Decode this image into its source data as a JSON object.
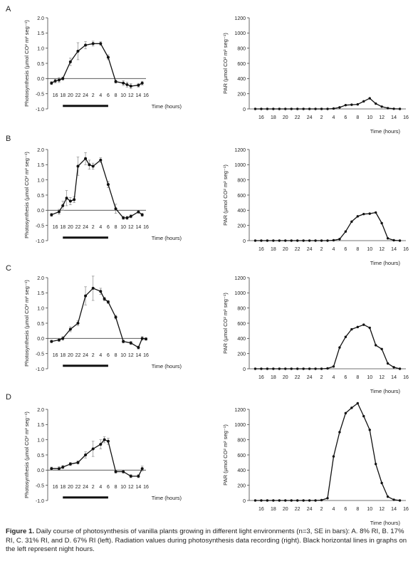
{
  "caption": {
    "label": "Figure 1.",
    "text": " Daily course of photosynthesis of vanilla plants growing in different light environments (n=3, SE in bars): A. 8% RI, B. 17% RI, C. 31% RI, and D. 67% RI (left). Radiation values during photosynthesis data recording (right). Black horizontal lines in graphs on the left represent night hours."
  },
  "colors": {
    "line": "#111111",
    "axis": "#444444",
    "error_bar": "#888888"
  },
  "chart_data": [
    {
      "panel": "A",
      "position": "left",
      "type": "line",
      "ylabel": "Photosynthesis (µmol CO² m² seg⁻¹)",
      "xlabel": "Time (hours)",
      "ylim": [
        -1.0,
        2.0
      ],
      "yticks": [
        "2.0",
        "1.5",
        "1.0",
        "0.5",
        "0.0",
        "-0.5",
        "-1.0"
      ],
      "xtick_labels": [
        "16",
        "18",
        "20",
        "22",
        "24",
        "2",
        "4",
        "6",
        "8",
        "10",
        "12",
        "14",
        "16"
      ],
      "night_bar": [
        18,
        30
      ],
      "x": [
        15,
        16,
        17,
        18,
        20,
        22,
        24,
        26,
        28,
        30,
        32,
        34,
        35,
        36,
        38,
        39
      ],
      "y": [
        -0.15,
        -0.08,
        -0.05,
        0.0,
        0.55,
        0.9,
        1.1,
        1.15,
        1.15,
        0.7,
        -0.1,
        -0.15,
        -0.2,
        -0.25,
        -0.22,
        -0.15
      ],
      "err": [
        0.05,
        0.06,
        0.08,
        0.05,
        0.12,
        0.28,
        0.12,
        0.08,
        0.06,
        0.08,
        0.05,
        0.08,
        0.08,
        0.08,
        0.06,
        0.06
      ]
    },
    {
      "panel": "A",
      "position": "right",
      "type": "line",
      "ylabel": "PAR (µmol CO² m² seg⁻¹)",
      "xlabel": "Time (hours)",
      "ylim": [
        0,
        1200
      ],
      "yticks": [
        "1200",
        "1000",
        "800",
        "600",
        "400",
        "200",
        "0"
      ],
      "xtick_labels": [
        "16",
        "18",
        "20",
        "22",
        "24",
        "2",
        "4",
        "6",
        "8",
        "10",
        "12",
        "14",
        "16"
      ],
      "x": [
        15,
        16,
        17,
        18,
        19,
        20,
        21,
        22,
        23,
        24,
        25,
        26,
        27,
        28,
        29,
        30,
        31,
        32,
        33,
        34,
        35,
        36,
        37,
        38,
        39
      ],
      "y": [
        0,
        0,
        0,
        0,
        0,
        0,
        0,
        0,
        0,
        0,
        0,
        0,
        0,
        5,
        20,
        50,
        55,
        60,
        100,
        140,
        70,
        30,
        10,
        2,
        0
      ]
    },
    {
      "panel": "B",
      "position": "left",
      "type": "line",
      "ylabel": "Photosynthesis (µmol CO² m² seg⁻¹)",
      "xlabel": "Time (hours)",
      "ylim": [
        -1.0,
        2.0
      ],
      "yticks": [
        "2.0",
        "1.5",
        "1.0",
        "0.5",
        "0.0",
        "-0.5",
        "-1.0"
      ],
      "xtick_labels": [
        "16",
        "18",
        "20",
        "22",
        "24",
        "2",
        "4",
        "6",
        "8",
        "10",
        "12",
        "14",
        "16"
      ],
      "night_bar": [
        18,
        30
      ],
      "x": [
        15,
        17,
        18,
        19,
        20,
        21,
        22,
        24,
        25,
        26,
        28,
        30,
        32,
        34,
        35,
        36,
        38,
        39
      ],
      "y": [
        -0.15,
        -0.05,
        0.15,
        0.4,
        0.3,
        0.35,
        1.45,
        1.7,
        1.5,
        1.45,
        1.65,
        0.85,
        0.05,
        -0.25,
        -0.25,
        -0.2,
        -0.05,
        -0.15
      ],
      "err": [
        0.05,
        0.08,
        0.15,
        0.25,
        0.12,
        0.1,
        0.3,
        0.2,
        0.15,
        0.1,
        0.08,
        0.1,
        0.15,
        0.05,
        0.05,
        0.05,
        0.05,
        0.05
      ]
    },
    {
      "panel": "B",
      "position": "right",
      "type": "line",
      "ylabel": "PAR (µmol CO² m² seg⁻¹)",
      "xlabel": "Time (hours)",
      "ylim": [
        0,
        1200
      ],
      "yticks": [
        "1200",
        "1000",
        "800",
        "600",
        "400",
        "200",
        "0"
      ],
      "xtick_labels": [
        "16",
        "18",
        "20",
        "22",
        "24",
        "2",
        "4",
        "6",
        "8",
        "10",
        "12",
        "14",
        "16"
      ],
      "x": [
        15,
        16,
        17,
        18,
        19,
        20,
        21,
        22,
        23,
        24,
        25,
        26,
        27,
        28,
        29,
        30,
        31,
        32,
        33,
        34,
        35,
        36,
        37,
        38,
        39
      ],
      "y": [
        0,
        0,
        0,
        0,
        0,
        0,
        0,
        0,
        0,
        0,
        0,
        0,
        0,
        5,
        20,
        120,
        250,
        320,
        350,
        355,
        370,
        230,
        30,
        5,
        0
      ]
    },
    {
      "panel": "C",
      "position": "left",
      "type": "line",
      "ylabel": "Photosynthesis (µmol CO² m² seg⁻¹)",
      "xlabel": "Time (hours)",
      "ylim": [
        -1.0,
        2.0
      ],
      "yticks": [
        "2.0",
        "1.5",
        "1.0",
        "0.5",
        "0.0",
        "-0.5",
        "-1.0"
      ],
      "xtick_labels": [
        "16",
        "18",
        "20",
        "22",
        "24",
        "2",
        "4",
        "6",
        "8",
        "10",
        "12",
        "14",
        "16"
      ],
      "night_bar": [
        18,
        30
      ],
      "x": [
        15,
        17,
        18,
        20,
        22,
        24,
        26,
        28,
        29,
        30,
        32,
        34,
        36,
        38,
        39,
        40
      ],
      "y": [
        -0.1,
        -0.05,
        0.0,
        0.3,
        0.5,
        1.4,
        1.65,
        1.55,
        1.3,
        1.2,
        0.7,
        -0.1,
        -0.15,
        -0.3,
        0.0,
        -0.02
      ],
      "err": [
        0.04,
        0.05,
        0.06,
        0.08,
        0.08,
        0.3,
        0.4,
        0.1,
        0.06,
        0.05,
        0.06,
        0.05,
        0.05,
        0.05,
        0.06,
        0.04
      ]
    },
    {
      "panel": "C",
      "position": "right",
      "type": "line",
      "ylabel": "PAR (µmol CO² m² seg⁻¹)",
      "xlabel": "Time (hours)",
      "ylim": [
        0,
        1200
      ],
      "yticks": [
        "1200",
        "1000",
        "800",
        "600",
        "400",
        "200",
        "0"
      ],
      "xtick_labels": [
        "16",
        "18",
        "20",
        "22",
        "24",
        "2",
        "4",
        "6",
        "8",
        "10",
        "12",
        "14",
        "16"
      ],
      "x": [
        15,
        16,
        17,
        18,
        19,
        20,
        21,
        22,
        23,
        24,
        25,
        26,
        27,
        28,
        29,
        30,
        31,
        32,
        33,
        34,
        35,
        36,
        37,
        38,
        39
      ],
      "y": [
        0,
        0,
        0,
        0,
        0,
        0,
        0,
        0,
        0,
        0,
        0,
        0,
        5,
        30,
        280,
        420,
        520,
        550,
        580,
        540,
        310,
        260,
        70,
        20,
        0
      ]
    },
    {
      "panel": "D",
      "position": "left",
      "type": "line",
      "ylabel": "Photosynthesis (µmol CO² m² seg⁻¹)",
      "xlabel": "Time (hours)",
      "ylim": [
        -1.0,
        2.0
      ],
      "yticks": [
        "2.0",
        "1.5",
        "1.0",
        "0.5",
        "0.0",
        "-0.5",
        "-1.0"
      ],
      "xtick_labels": [
        "16",
        "18",
        "20",
        "22",
        "24",
        "2",
        "4",
        "6",
        "8",
        "10",
        "12",
        "14",
        "16"
      ],
      "night_bar": [
        18,
        30
      ],
      "x": [
        15,
        17,
        18,
        20,
        22,
        24,
        26,
        28,
        29,
        30,
        32,
        34,
        36,
        38,
        39
      ],
      "y": [
        0.05,
        0.05,
        0.1,
        0.2,
        0.25,
        0.5,
        0.7,
        0.85,
        1.0,
        0.95,
        -0.05,
        -0.05,
        -0.2,
        -0.2,
        0.05
      ],
      "err": [
        0.05,
        0.06,
        0.05,
        0.05,
        0.05,
        0.1,
        0.25,
        0.15,
        0.1,
        0.1,
        0.05,
        0.05,
        0.05,
        0.05,
        0.08
      ]
    },
    {
      "panel": "D",
      "position": "right",
      "type": "line",
      "ylabel": "PAR (µmol CO² m² seg⁻¹)",
      "xlabel": "Time (hours)",
      "ylim": [
        0,
        1200
      ],
      "yticks": [
        "1200",
        "1000",
        "800",
        "600",
        "400",
        "200",
        "0"
      ],
      "xtick_labels": [
        "16",
        "18",
        "20",
        "22",
        "24",
        "2",
        "4",
        "6",
        "8",
        "10",
        "12",
        "14",
        "16"
      ],
      "x": [
        15,
        16,
        17,
        18,
        19,
        20,
        21,
        22,
        23,
        24,
        25,
        26,
        27,
        28,
        29,
        30,
        31,
        32,
        33,
        34,
        35,
        36,
        37,
        38,
        39
      ],
      "y": [
        0,
        0,
        0,
        0,
        0,
        0,
        0,
        0,
        0,
        0,
        0,
        5,
        30,
        580,
        900,
        1150,
        1220,
        1280,
        1110,
        930,
        480,
        230,
        50,
        10,
        0
      ]
    }
  ]
}
